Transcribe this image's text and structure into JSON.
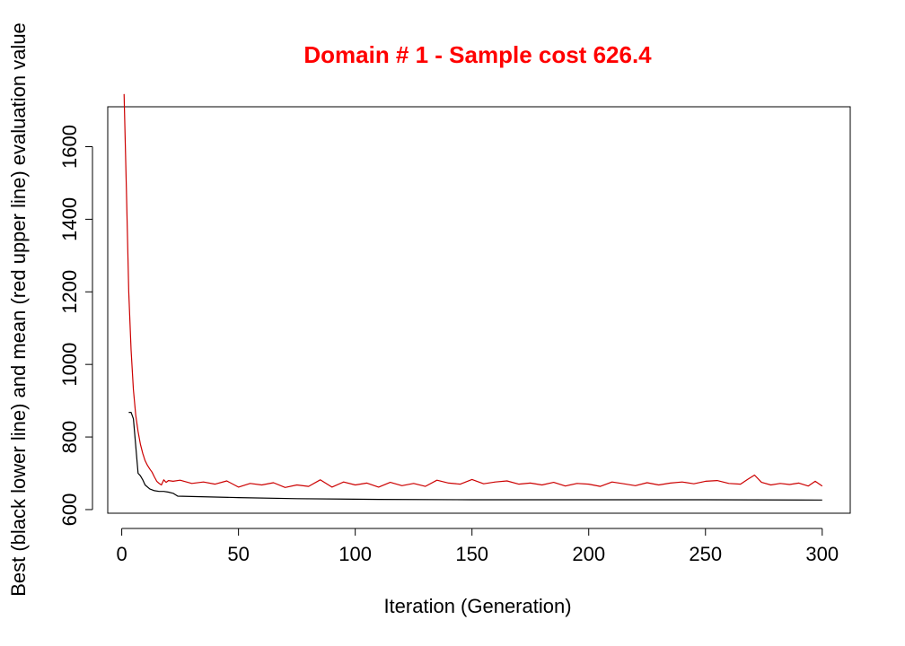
{
  "chart_data": {
    "type": "line",
    "title": "Domain # 1  - Sample cost 626.4",
    "xlabel": "Iteration (Generation)",
    "ylabel": "Best (black lower line) and mean (red upper line) evaluation value",
    "xlim": [
      -6,
      312
    ],
    "ylim": [
      590,
      1710
    ],
    "xticks": [
      0,
      50,
      100,
      150,
      200,
      250,
      300
    ],
    "yticks": [
      600,
      800,
      1000,
      1200,
      1400,
      1600
    ],
    "grid": false,
    "colors": {
      "title": "#ff0000",
      "mean": "#cc0000",
      "best": "#000000"
    },
    "series": [
      {
        "name": "mean",
        "x": [
          1,
          2,
          3,
          4,
          5,
          6,
          7,
          8,
          9,
          10,
          11,
          12,
          13,
          14,
          15,
          16,
          17,
          18,
          19,
          20,
          22,
          25,
          30,
          35,
          40,
          45,
          50,
          55,
          60,
          65,
          70,
          75,
          80,
          85,
          90,
          95,
          100,
          105,
          110,
          115,
          120,
          125,
          130,
          135,
          140,
          145,
          150,
          155,
          160,
          165,
          170,
          175,
          180,
          185,
          190,
          195,
          200,
          205,
          210,
          215,
          220,
          225,
          230,
          235,
          240,
          245,
          250,
          255,
          260,
          265,
          268,
          271,
          274,
          278,
          282,
          286,
          290,
          294,
          297,
          300
        ],
        "values": [
          1745,
          1480,
          1200,
          1040,
          930,
          860,
          815,
          780,
          755,
          735,
          722,
          712,
          703,
          690,
          678,
          672,
          668,
          682,
          675,
          680,
          678,
          681,
          672,
          676,
          670,
          679,
          662,
          672,
          668,
          674,
          661,
          668,
          664,
          682,
          662,
          676,
          668,
          673,
          662,
          675,
          666,
          672,
          664,
          681,
          673,
          670,
          683,
          671,
          676,
          679,
          670,
          673,
          668,
          675,
          665,
          672,
          670,
          664,
          676,
          671,
          666,
          674,
          668,
          673,
          676,
          671,
          678,
          680,
          672,
          670,
          683,
          695,
          675,
          668,
          672,
          669,
          673,
          665,
          678,
          665
        ]
      },
      {
        "name": "best",
        "x": [
          3,
          4,
          5,
          6,
          7,
          8,
          9,
          10,
          12,
          14,
          16,
          18,
          20,
          22,
          24,
          30,
          50,
          75,
          110,
          150,
          200,
          250,
          300
        ],
        "values": [
          868,
          868,
          850,
          775,
          700,
          693,
          682,
          668,
          657,
          652,
          650,
          650,
          648,
          645,
          637,
          636,
          633,
          630,
          628,
          627,
          627,
          627,
          626.4
        ]
      }
    ]
  }
}
